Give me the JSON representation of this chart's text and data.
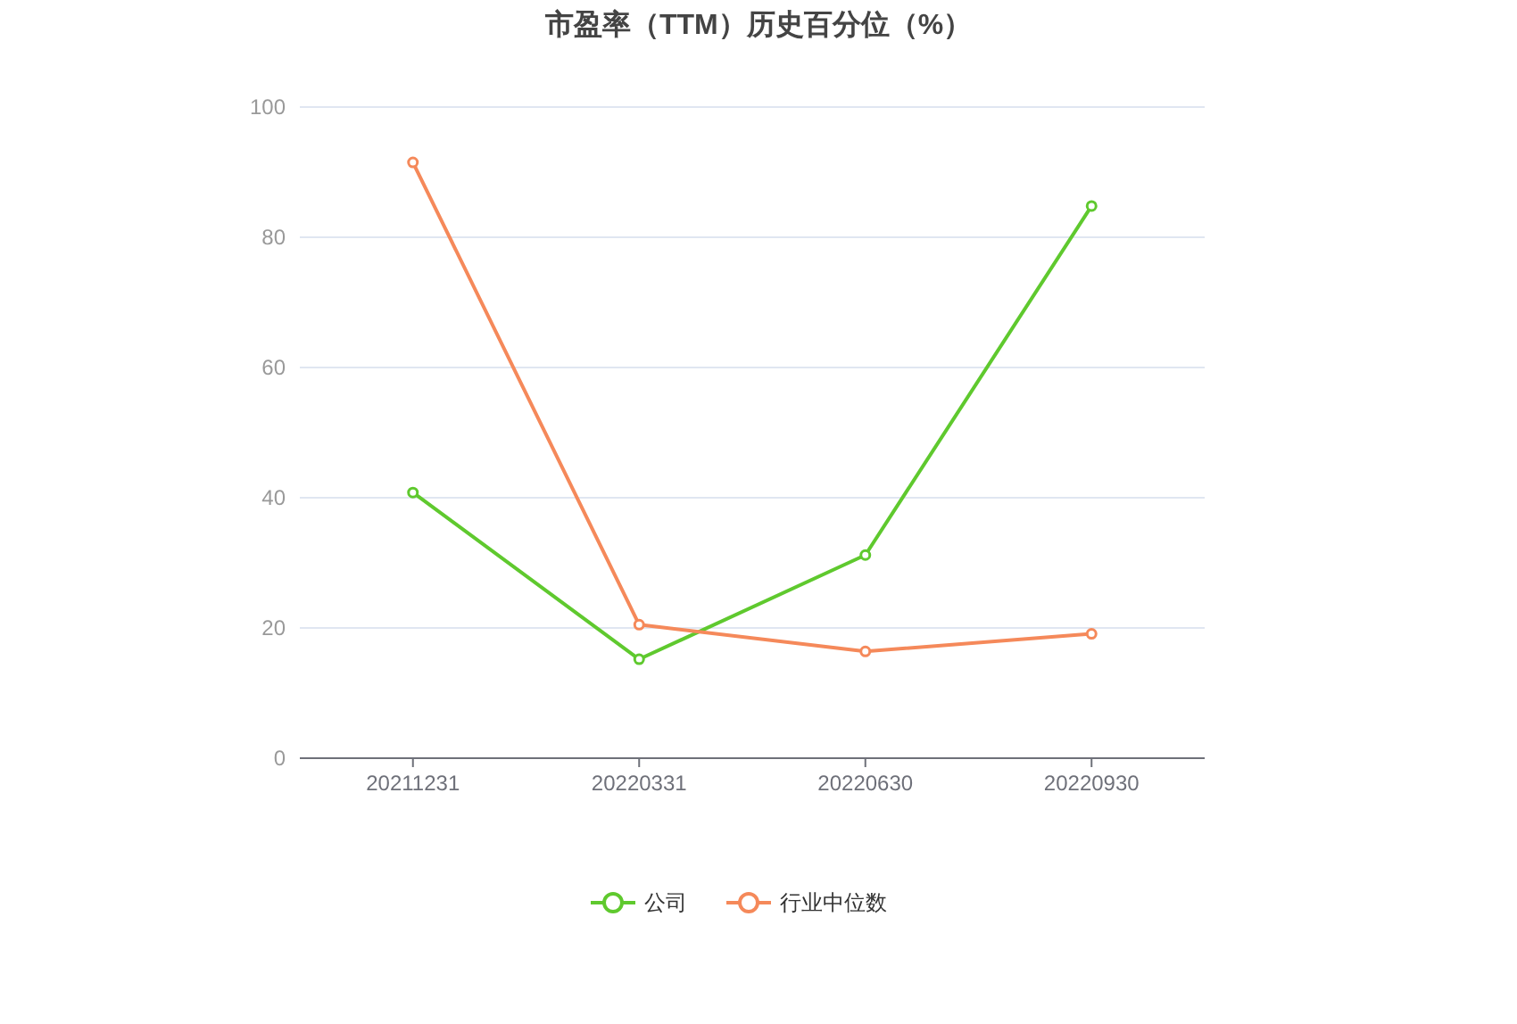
{
  "chart_data": {
    "type": "line",
    "title": "市盈率（TTM）历史百分位（%）",
    "categories": [
      "20211231",
      "20220331",
      "20220630",
      "20220930"
    ],
    "series": [
      {
        "name": "公司",
        "color": "#5fc92e",
        "values": [
          40.8,
          15.2,
          31.2,
          84.8
        ]
      },
      {
        "name": "行业中位数",
        "color": "#f5895a",
        "values": [
          91.5,
          20.5,
          16.4,
          19.1
        ]
      }
    ],
    "ylim": [
      0,
      100
    ],
    "yticks": [
      0,
      20,
      40,
      60,
      80,
      100
    ],
    "grid": "y",
    "legend": "bottom",
    "marker": "circle",
    "line_style": "solid"
  }
}
